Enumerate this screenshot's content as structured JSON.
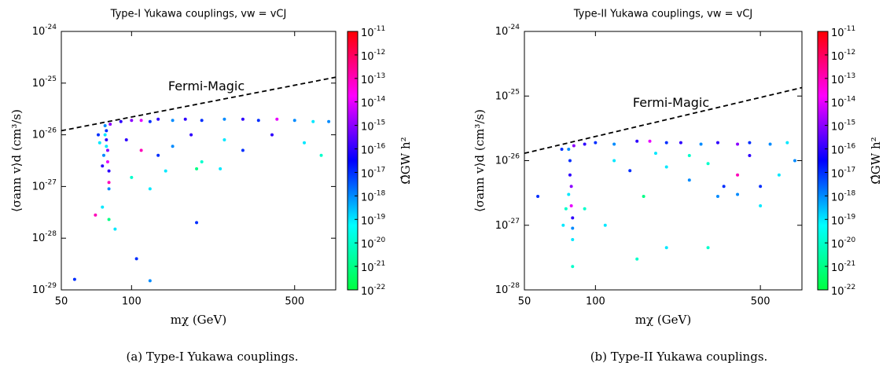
{
  "chart_data": [
    {
      "type": "scatter",
      "title": "Type-I Yukawa couplings,  vw = vCJ",
      "xlabel": "mχ (GeV)",
      "ylabel": "⟨σann v⟩d (cm³/s)",
      "colorbar_label": "Ω̂GW h²",
      "caption": "(a)  Type-I Yukawa couplings.",
      "xscale": "log",
      "yscale": "log",
      "xlim": [
        50,
        750
      ],
      "ylim": [
        1e-29,
        1e-24
      ],
      "xticks": [
        50,
        100,
        500
      ],
      "yticks": [
        {
          "value": 1e-29,
          "label": "10",
          "sup": "-29"
        },
        {
          "value": 1e-28,
          "label": "10",
          "sup": "-28"
        },
        {
          "value": 1e-27,
          "label": "10",
          "sup": "-27"
        },
        {
          "value": 1e-26,
          "label": "10",
          "sup": "-26"
        },
        {
          "value": 1e-25,
          "label": "10",
          "sup": "-25"
        },
        {
          "value": 1e-24,
          "label": "10",
          "sup": "-24"
        }
      ],
      "clim": [
        1e-22,
        1e-11
      ],
      "cticks": [
        {
          "value": 1e-22,
          "label": "10",
          "sup": "-22"
        },
        {
          "value": 1e-21,
          "label": "10",
          "sup": "-21"
        },
        {
          "value": 1e-20,
          "label": "10",
          "sup": "-20"
        },
        {
          "value": 1e-19,
          "label": "10",
          "sup": "-19"
        },
        {
          "value": 1e-18,
          "label": "10",
          "sup": "-18"
        },
        {
          "value": 1e-17,
          "label": "10",
          "sup": "-17"
        },
        {
          "value": 1e-16,
          "label": "10",
          "sup": "-16"
        },
        {
          "value": 1e-15,
          "label": "10",
          "sup": "-15"
        },
        {
          "value": 1e-14,
          "label": "10",
          "sup": "-14"
        },
        {
          "value": 1e-13,
          "label": "10",
          "sup": "-13"
        },
        {
          "value": 1e-12,
          "label": "10",
          "sup": "-12"
        },
        {
          "value": 1e-11,
          "label": "10",
          "sup": "-11"
        }
      ],
      "colormap": [
        "#00ff40",
        "#00ffff",
        "#0000ff",
        "#ff00ff",
        "#ff0000"
      ],
      "limit": {
        "name": "Fermi-Magic",
        "x": [
          50,
          750
        ],
        "y": [
          1.2e-26,
          1.3e-25
        ],
        "color": "#000000"
      },
      "points": {
        "x": [
          77,
          78,
          78,
          79,
          79,
          80,
          80,
          80,
          81,
          78,
          76,
          77,
          72,
          73,
          75,
          70,
          80,
          75,
          85,
          57,
          105,
          120,
          190,
          90,
          100,
          110,
          120,
          130,
          150,
          170,
          200,
          250,
          300,
          350,
          420,
          500,
          600,
          700,
          95,
          110,
          130,
          150,
          200,
          180,
          250,
          300,
          400,
          550,
          650,
          120,
          140,
          100,
          240,
          190
        ],
        "y": [
          1.5e-26,
          1.2e-26,
          8e-27,
          5e-27,
          3e-27,
          2e-27,
          1.2e-27,
          9e-28,
          1.6e-26,
          6e-27,
          4e-27,
          1e-26,
          1e-26,
          7e-27,
          2.5e-27,
          2.8e-28,
          2.3e-28,
          4e-28,
          1.5e-28,
          1.6e-29,
          4e-29,
          1.5e-29,
          2e-28,
          1.8e-26,
          1.9e-26,
          1.9e-26,
          1.8e-26,
          2e-26,
          1.9e-26,
          2e-26,
          1.9e-26,
          2e-26,
          2e-26,
          1.9e-26,
          2e-26,
          1.9e-26,
          1.8e-26,
          1.8e-26,
          8e-27,
          5e-27,
          4e-27,
          6e-27,
          3e-27,
          1e-26,
          8e-27,
          5e-27,
          1e-26,
          7e-27,
          4e-27,
          9e-28,
          2e-27,
          1.5e-27,
          2.2e-27,
          2.2e-27
        ],
        "c": [
          1e-18,
          1e-17,
          1e-16,
          1e-15,
          1e-14,
          1e-16,
          1e-13,
          1e-18,
          1e-15,
          1e-19,
          1e-18,
          1e-19,
          1e-17,
          1e-19,
          1e-16,
          1e-13,
          1e-21,
          1e-19,
          1e-19,
          1e-17,
          1e-17,
          1e-18,
          1e-17,
          1e-16,
          1e-15,
          1e-14,
          1e-17,
          1e-16,
          1e-18,
          1e-16,
          1e-17,
          1e-18,
          1e-16,
          1e-17,
          1e-14,
          1e-18,
          1e-19,
          1e-18,
          1e-16,
          1e-13,
          1e-17,
          1e-18,
          1e-20,
          1e-16,
          1e-19,
          1e-17,
          1e-16,
          1e-19,
          1e-20,
          1e-19,
          1e-19,
          1e-20,
          1e-19,
          1e-21
        ]
      }
    },
    {
      "type": "scatter",
      "title": "Type-II Yukawa couplings,  vw = vCJ",
      "xlabel": "mχ (GeV)",
      "ylabel": "⟨σann v⟩d (cm³/s)",
      "colorbar_label": "Ω̂GW h²",
      "caption": "(b)  Type-II Yukawa couplings.",
      "xscale": "log",
      "yscale": "log",
      "xlim": [
        50,
        750
      ],
      "ylim": [
        1e-28,
        1e-24
      ],
      "xticks": [
        50,
        100,
        500
      ],
      "yticks": [
        {
          "value": 1e-28,
          "label": "10",
          "sup": "-28"
        },
        {
          "value": 1e-27,
          "label": "10",
          "sup": "-27"
        },
        {
          "value": 1e-26,
          "label": "10",
          "sup": "-26"
        },
        {
          "value": 1e-25,
          "label": "10",
          "sup": "-25"
        },
        {
          "value": 1e-24,
          "label": "10",
          "sup": "-24"
        }
      ],
      "clim": [
        1e-22,
        1e-11
      ],
      "cticks": [
        {
          "value": 1e-22,
          "label": "10",
          "sup": "-22"
        },
        {
          "value": 1e-21,
          "label": "10",
          "sup": "-21"
        },
        {
          "value": 1e-20,
          "label": "10",
          "sup": "-20"
        },
        {
          "value": 1e-19,
          "label": "10",
          "sup": "-19"
        },
        {
          "value": 1e-18,
          "label": "10",
          "sup": "-18"
        },
        {
          "value": 1e-17,
          "label": "10",
          "sup": "-17"
        },
        {
          "value": 1e-16,
          "label": "10",
          "sup": "-16"
        },
        {
          "value": 1e-15,
          "label": "10",
          "sup": "-15"
        },
        {
          "value": 1e-14,
          "label": "10",
          "sup": "-14"
        },
        {
          "value": 1e-13,
          "label": "10",
          "sup": "-13"
        },
        {
          "value": 1e-12,
          "label": "10",
          "sup": "-12"
        },
        {
          "value": 1e-11,
          "label": "10",
          "sup": "-11"
        }
      ],
      "colormap": [
        "#00ff40",
        "#00ffff",
        "#0000ff",
        "#ff00ff",
        "#ff0000"
      ],
      "limit": {
        "name": "Fermi-Magic",
        "x": [
          50,
          750
        ],
        "y": [
          1.3e-26,
          1.35e-25
        ],
        "color": "#000000"
      },
      "points": {
        "x": [
          77,
          78,
          78,
          79,
          79,
          80,
          80,
          80,
          80,
          81,
          77,
          57,
          72,
          73,
          75,
          90,
          110,
          150,
          160,
          200,
          300,
          90,
          100,
          120,
          150,
          170,
          200,
          230,
          280,
          330,
          400,
          450,
          550,
          650,
          700,
          120,
          140,
          200,
          250,
          300,
          350,
          400,
          500,
          600,
          450,
          250,
          180,
          330,
          500,
          400
        ],
        "y": [
          1.5e-26,
          1e-26,
          6e-27,
          4e-27,
          2e-27,
          1.3e-27,
          9e-28,
          6e-28,
          2.3e-28,
          1.7e-26,
          3e-27,
          2.8e-27,
          1.5e-26,
          1e-27,
          1.8e-27,
          1.8e-27,
          1e-27,
          3e-28,
          2.8e-27,
          4.5e-28,
          4.5e-28,
          1.8e-26,
          1.9e-26,
          1.8e-26,
          2e-26,
          2e-26,
          1.9e-26,
          1.9e-26,
          1.8e-26,
          1.9e-26,
          1.8e-26,
          1.9e-26,
          1.8e-26,
          1.9e-26,
          1e-26,
          1e-26,
          7e-27,
          8e-27,
          5e-27,
          9e-27,
          4e-27,
          6e-27,
          4e-27,
          6e-27,
          1.2e-26,
          1.2e-26,
          1.3e-26,
          2.8e-27,
          2e-27,
          3e-27
        ],
        "c": [
          1e-18,
          1e-17,
          1e-16,
          1e-15,
          1e-14,
          1e-16,
          1e-18,
          1e-19,
          1e-20,
          1e-15,
          1e-19,
          1e-17,
          1e-17,
          1e-19,
          1e-20,
          1e-20,
          1e-19,
          1e-20,
          1e-21,
          1e-19,
          1e-20,
          1e-16,
          1e-17,
          1e-18,
          1e-16,
          1e-14,
          1e-17,
          1e-16,
          1e-18,
          1e-16,
          1e-15,
          1e-17,
          1e-18,
          1e-19,
          1e-18,
          1e-19,
          1e-17,
          1e-19,
          1e-18,
          1e-20,
          1e-17,
          1e-13,
          1e-17,
          1e-19,
          1e-16,
          1e-20,
          1e-19,
          1e-18,
          1e-19,
          1e-18
        ]
      }
    }
  ]
}
